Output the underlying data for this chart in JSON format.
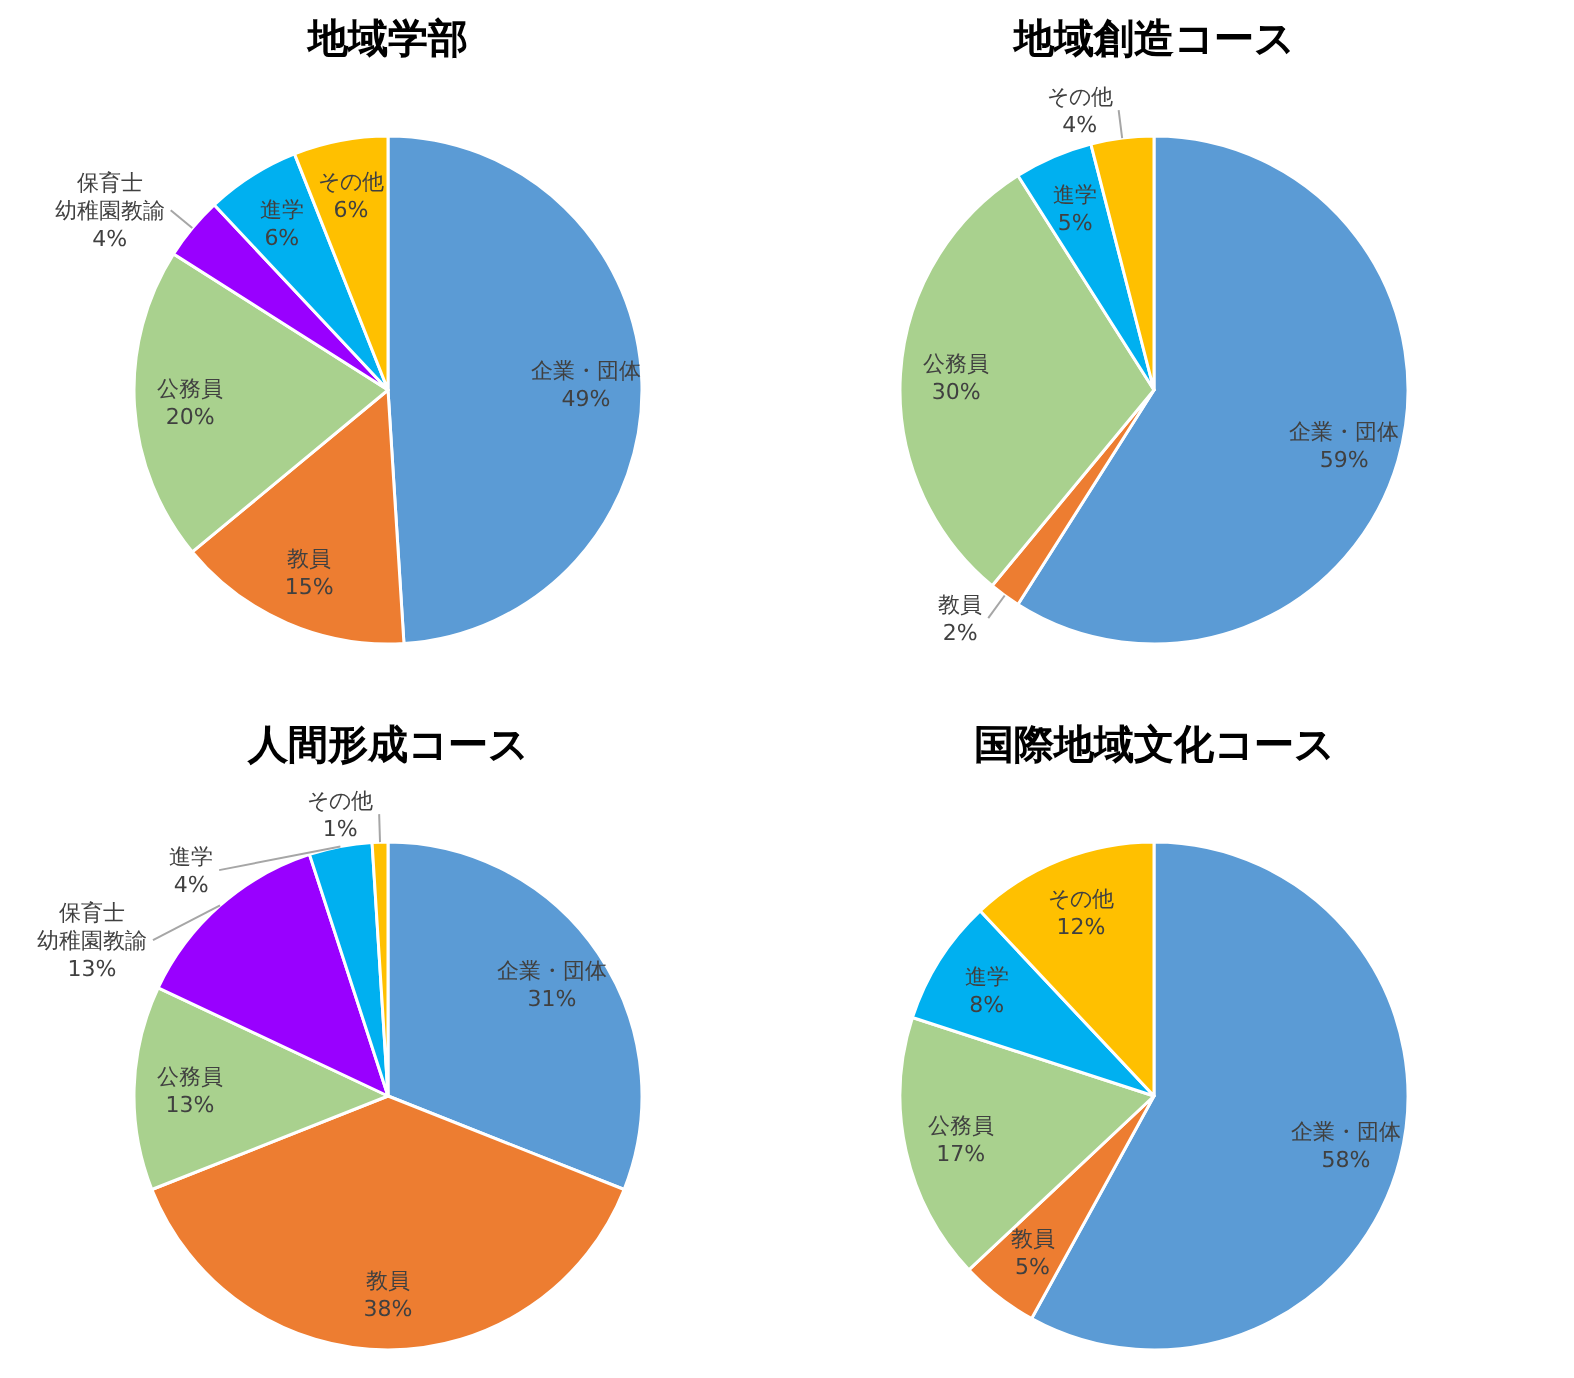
{
  "chart_data": [
    {
      "type": "pie",
      "title": "地域学部",
      "categories": [
        "企業・団体",
        "教員",
        "公務員",
        "保育士幼稚園教諭",
        "進学",
        "その他"
      ],
      "values": [
        49,
        15,
        20,
        4,
        6,
        6
      ],
      "colors": [
        "#5b9bd5",
        "#ed7d31",
        "#a9d18e",
        "#9900ff",
        "#00b0f0",
        "#ffc000"
      ],
      "value_labels": [
        "49%",
        "15%",
        "20%",
        "4%",
        "6%",
        "6%"
      ]
    },
    {
      "type": "pie",
      "title": "地域創造コース",
      "categories": [
        "企業・団体",
        "教員",
        "公務員",
        "進学",
        "その他"
      ],
      "values": [
        59,
        2,
        30,
        5,
        4
      ],
      "colors": [
        "#5b9bd5",
        "#ed7d31",
        "#a9d18e",
        "#00b0f0",
        "#ffc000"
      ],
      "value_labels": [
        "59%",
        "2%",
        "30%",
        "5%",
        "4%"
      ]
    },
    {
      "type": "pie",
      "title": "人間形成コース",
      "categories": [
        "企業・団体",
        "教員",
        "公務員",
        "保育士幼稚園教諭",
        "進学",
        "その他"
      ],
      "values": [
        31,
        38,
        13,
        13,
        4,
        1
      ],
      "colors": [
        "#5b9bd5",
        "#ed7d31",
        "#a9d18e",
        "#9900ff",
        "#00b0f0",
        "#ffc000"
      ],
      "value_labels": [
        "31%",
        "38%",
        "13%",
        "13%",
        "4%",
        "1%"
      ]
    },
    {
      "type": "pie",
      "title": "国際地域文化コース",
      "categories": [
        "企業・団体",
        "教員",
        "公務員",
        "進学",
        "その他"
      ],
      "values": [
        58,
        5,
        17,
        8,
        12
      ],
      "colors": [
        "#5b9bd5",
        "#ed7d31",
        "#a9d18e",
        "#00b0f0",
        "#ffc000"
      ],
      "value_labels": [
        "58%",
        "5%",
        "17%",
        "8%",
        "12%"
      ]
    }
  ]
}
